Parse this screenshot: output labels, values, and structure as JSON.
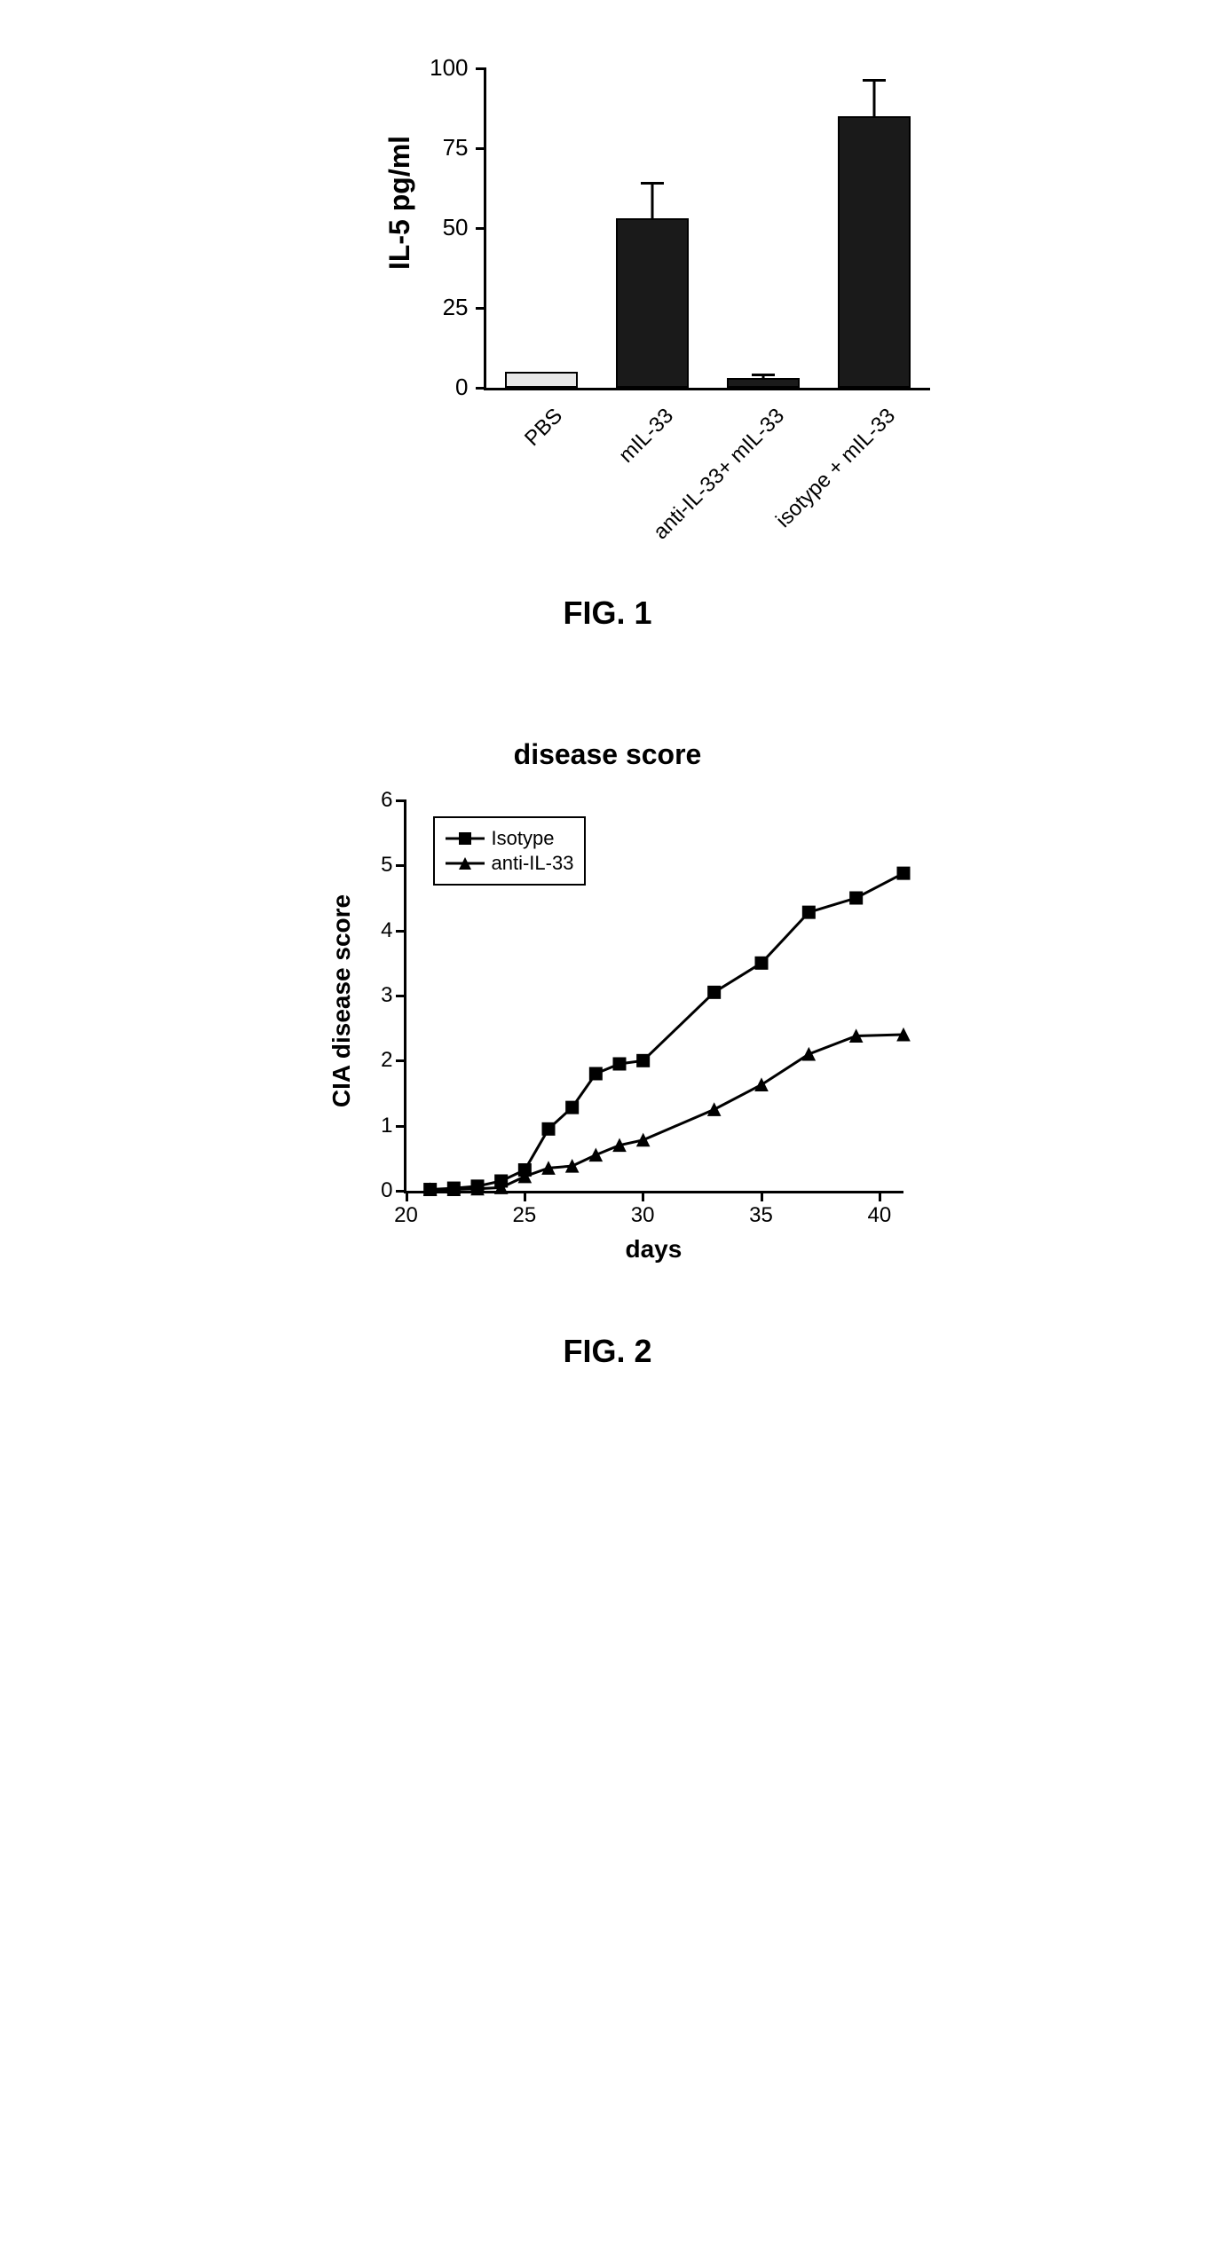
{
  "fig1": {
    "caption": "FIG. 1",
    "type": "bar",
    "ylabel": "IL-5 pg/ml",
    "ylim": [
      0,
      100
    ],
    "yticks": [
      0,
      25,
      50,
      75,
      100
    ],
    "label_fontsize": 32,
    "tick_fontsize": 26,
    "categories": [
      "PBS",
      "mIL-33",
      "anti-IL-33+ mIL-33",
      "isotype + mIL-33"
    ],
    "values": [
      5,
      53,
      3,
      85
    ],
    "errors": [
      0,
      11,
      1,
      11
    ],
    "bar_colors": [
      "#e8e8e8",
      "#1a1a1a",
      "#1a1a1a",
      "#1a1a1a"
    ],
    "bar_border": "#000000",
    "bar_width": 0.65,
    "background_color": "#ffffff",
    "axis_color": "#000000"
  },
  "fig2": {
    "caption": "FIG. 2",
    "type": "line",
    "title": "disease score",
    "xlabel": "days",
    "ylabel": "CIA disease score",
    "xlim": [
      20,
      41
    ],
    "ylim": [
      0,
      6
    ],
    "xticks": [
      20,
      25,
      30,
      35,
      40
    ],
    "yticks": [
      0,
      1,
      2,
      3,
      4,
      5,
      6
    ],
    "title_fontsize": 32,
    "label_fontsize": 28,
    "tick_fontsize": 24,
    "line_width": 3,
    "marker_size": 7,
    "axis_color": "#000000",
    "background_color": "#ffffff",
    "legend_position": "top-left-inside",
    "series": [
      {
        "name": "Isotype",
        "marker": "square",
        "color": "#000000",
        "x": [
          21,
          22,
          23,
          24,
          25,
          26,
          27,
          28,
          29,
          30,
          33,
          35,
          37,
          39,
          41
        ],
        "y": [
          0.02,
          0.04,
          0.07,
          0.15,
          0.32,
          0.95,
          1.28,
          1.8,
          1.95,
          2.0,
          3.05,
          3.5,
          4.28,
          4.5,
          4.88
        ]
      },
      {
        "name": "anti-IL-33",
        "marker": "triangle",
        "color": "#000000",
        "x": [
          21,
          22,
          23,
          24,
          25,
          26,
          27,
          28,
          29,
          30,
          33,
          35,
          37,
          39,
          41
        ],
        "y": [
          0.02,
          0.02,
          0.03,
          0.05,
          0.22,
          0.35,
          0.38,
          0.55,
          0.7,
          0.78,
          1.25,
          1.63,
          2.1,
          2.38,
          2.4
        ]
      }
    ]
  }
}
